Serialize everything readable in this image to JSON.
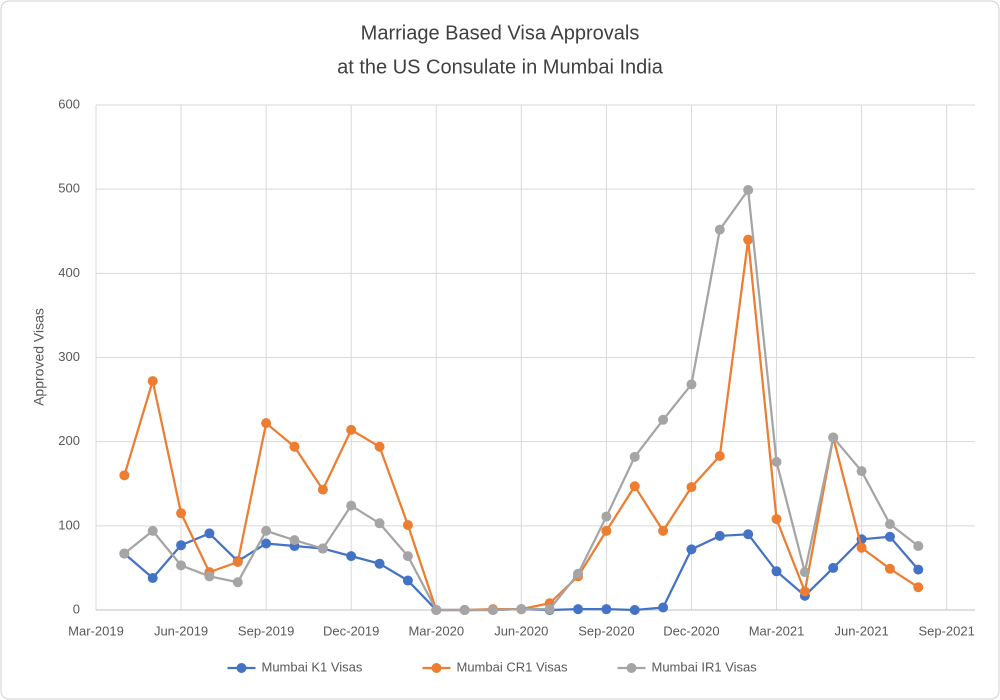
{
  "chart_data": {
    "type": "line",
    "title": [
      "Marriage Based Visa Approvals",
      "at the US Consulate in Mumbai India"
    ],
    "y_label": "Approved Visas",
    "x": [
      "2019-04",
      "2019-05",
      "2019-06",
      "2019-07",
      "2019-08",
      "2019-09",
      "2019-10",
      "2019-11",
      "2019-12",
      "2020-01",
      "2020-02",
      "2020-03",
      "2020-04",
      "2020-05",
      "2020-06",
      "2020-07",
      "2020-08",
      "2020-09",
      "2020-10",
      "2020-11",
      "2020-12",
      "2021-01",
      "2021-02",
      "2021-03",
      "2021-04",
      "2021-05",
      "2021-06",
      "2021-07",
      "2021-08"
    ],
    "series": [
      {
        "name": "Mumbai K1 Visas",
        "color": "#4472c4",
        "values": [
          67,
          38,
          77,
          91,
          58,
          79,
          76,
          73,
          64,
          55,
          35,
          0,
          0,
          0,
          1,
          0,
          1,
          1,
          0,
          3,
          72,
          88,
          90,
          46,
          17,
          50,
          84,
          87,
          48
        ]
      },
      {
        "name": "Mumbai CR1 Visas",
        "color": "#ed7d31",
        "values": [
          160,
          272,
          115,
          45,
          57,
          222,
          194,
          143,
          214,
          194,
          101,
          0,
          0,
          1,
          1,
          8,
          40,
          94,
          147,
          94,
          146,
          183,
          440,
          108,
          22,
          205,
          74,
          49,
          27
        ]
      },
      {
        "name": "Mumbai IR1 Visas",
        "color": "#a5a5a5",
        "values": [
          67,
          94,
          53,
          40,
          33,
          94,
          83,
          73,
          124,
          103,
          64,
          0,
          0,
          0,
          1,
          1,
          43,
          111,
          182,
          226,
          268,
          452,
          499,
          176,
          45,
          205,
          165,
          102,
          76
        ]
      }
    ],
    "xlim": [
      "2019-03",
      "2021-10"
    ],
    "xticks": [
      {
        "value": "2019-03",
        "label": "Mar-2019"
      },
      {
        "value": "2019-06",
        "label": "Jun-2019"
      },
      {
        "value": "2019-09",
        "label": "Sep-2019"
      },
      {
        "value": "2019-12",
        "label": "Dec-2019"
      },
      {
        "value": "2020-03",
        "label": "Mar-2020"
      },
      {
        "value": "2020-06",
        "label": "Jun-2020"
      },
      {
        "value": "2020-09",
        "label": "Sep-2020"
      },
      {
        "value": "2020-12",
        "label": "Dec-2020"
      },
      {
        "value": "2021-03",
        "label": "Mar-2021"
      },
      {
        "value": "2021-06",
        "label": "Jun-2021"
      },
      {
        "value": "2021-09",
        "label": "Sep-2021"
      }
    ],
    "ylim": [
      0,
      600
    ],
    "yticks": [
      0,
      100,
      200,
      300,
      400,
      500,
      600
    ],
    "grid": true,
    "legend": "bottom"
  }
}
